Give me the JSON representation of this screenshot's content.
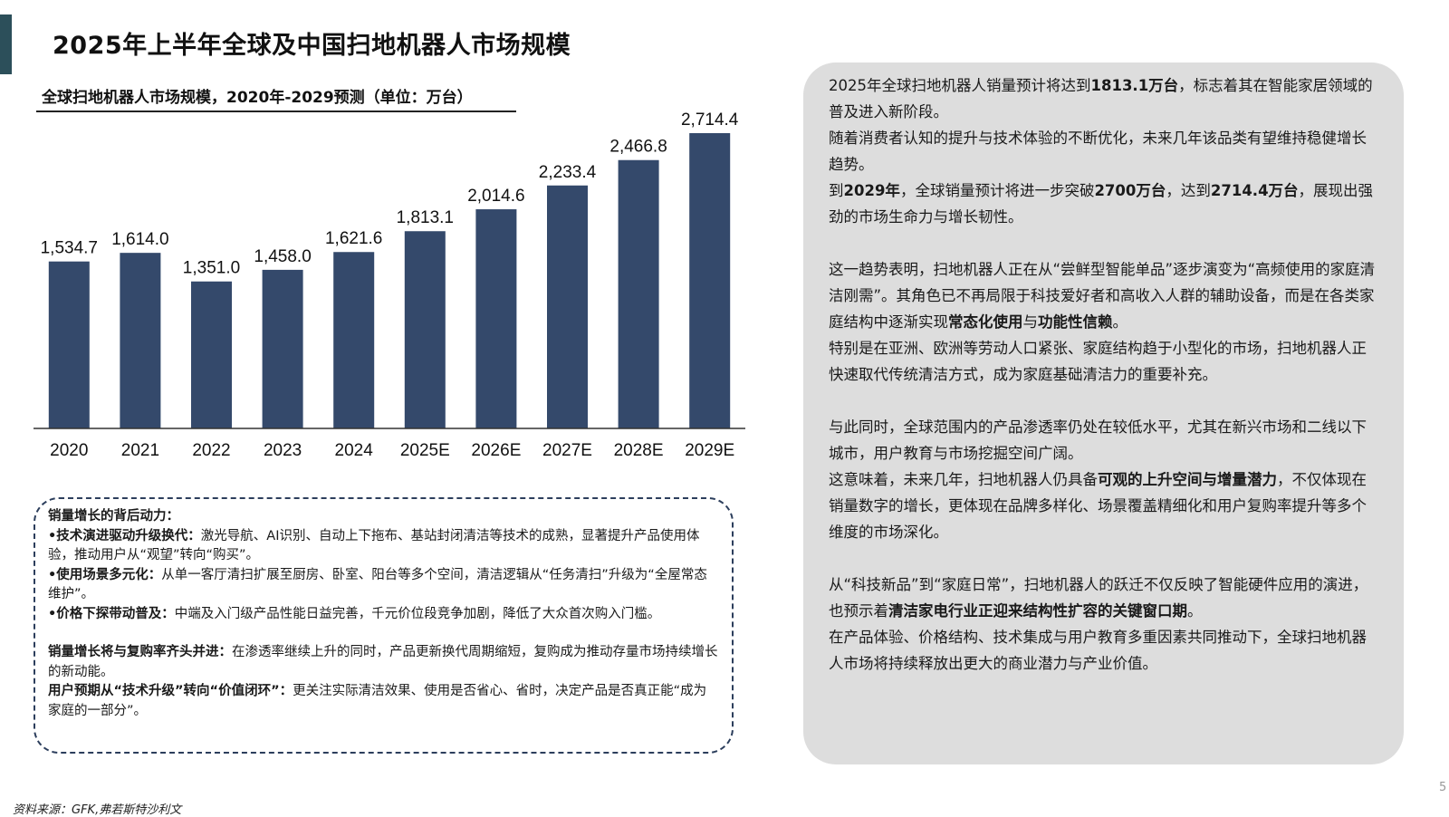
{
  "page": {
    "title": "2025年上半年全球及中国扫地机器人市场规模",
    "source": "资料来源：GFK,弗若斯特沙利文",
    "page_number": "5"
  },
  "colors": {
    "bar": "#34496b",
    "accent": "#2c4f5a",
    "panel_bg": "#dddddd",
    "box_border": "#2c3e5c"
  },
  "chart_data": {
    "type": "bar",
    "title": "全球扫地机器人市场规模，2020年-2029预测（单位：万台）",
    "categories": [
      "2020",
      "2021",
      "2022",
      "2023",
      "2024",
      "2025E",
      "2026E",
      "2027E",
      "2028E",
      "2029E"
    ],
    "values": [
      1534.7,
      1614.0,
      1351.0,
      1458.0,
      1621.6,
      1813.1,
      2014.6,
      2233.4,
      2466.8,
      2714.4
    ],
    "value_labels": [
      "1,534.7",
      "1,614.0",
      "1,351.0",
      "1,458.0",
      "1,621.6",
      "1,813.1",
      "2,014.6",
      "2,233.4",
      "2,466.8",
      "2,714.4"
    ],
    "ylim": [
      0,
      2714.4
    ],
    "grid": false,
    "legend": false
  },
  "drivers": {
    "heading": "销量增长的背后动力：",
    "item1_label": "•技术演进驱动升级换代：",
    "item1_text": "激光导航、AI识别、自动上下拖布、基站封闭清洁等技术的成熟，显著提升产品使用体验，推动用户从“观望”转向“购买”。",
    "item2_label": "•使用场景多元化：",
    "item2_text": "从单一客厅清扫扩展至厨房、卧室、阳台等多个空间，清洁逻辑从“任务清扫”升级为“全屋常态维护”。",
    "item3_label": "•价格下探带动普及：",
    "item3_text": "中端及入门级产品性能日益完善，千元价位段竞争加剧，降低了大众首次购入门槛。",
    "item4_label": "销量增长将与复购率齐头并进：",
    "item4_text": "在渗透率继续上升的同时，产品更新换代周期缩短，复购成为推动存量市场持续增长的新动能。",
    "item5_label": "用户预期从“技术升级”转向“价值闭环”：",
    "item5_text": "更关注实际清洁效果、使用是否省心、省时，决定产品是否真正能“成为家庭的一部分”。"
  },
  "panel": {
    "p1_a": "2025年全球扫地机器人销量预计将达到",
    "p1_b": "1813.1万台",
    "p1_c": "，标志着其在智能家居领域的普及进入新阶段。",
    "p2": "随着消费者认知的提升与技术体验的不断优化，未来几年该品类有望维持稳健增长趋势。",
    "p3_a": "到",
    "p3_b": "2029年",
    "p3_c": "，全球销量预计将进一步突破",
    "p3_d": "2700万台",
    "p3_e": "，达到",
    "p3_f": "2714.4万台",
    "p3_g": "，展现出强劲的市场生命力与增长韧性。",
    "p4_a": "这一趋势表明，扫地机器人正在从“尝鲜型智能单品”逐步演变为“高频使用的家庭清洁刚需”。其角色已不再局限于科技爱好者和高收入人群的辅助设备，而是在各类家庭结构中逐渐实现",
    "p4_b": "常态化使用",
    "p4_c": "与",
    "p4_d": "功能性信赖",
    "p4_e": "。",
    "p5": "特别是在亚洲、欧洲等劳动人口紧张、家庭结构趋于小型化的市场，扫地机器人正快速取代传统清洁方式，成为家庭基础清洁力的重要补充。",
    "p6": "与此同时，全球范围内的产品渗透率仍处在较低水平，尤其在新兴市场和二线以下城市，用户教育与市场挖掘空间广阔。",
    "p7_a": "这意味着，未来几年，扫地机器人仍具备",
    "p7_b": "可观的上升空间与增量潜力",
    "p7_c": "，不仅体现在销量数字的增长，更体现在品牌多样化、场景覆盖精细化和用户复购率提升等多个维度的市场深化。",
    "p8_a": "从“科技新品”到“家庭日常”，扫地机器人的跃迁不仅反映了智能硬件应用的演进，也预示着",
    "p8_b": "清洁家电行业正迎来结构性扩容的关键窗口期",
    "p8_c": "。",
    "p9": "在产品体验、价格结构、技术集成与用户教育多重因素共同推动下，全球扫地机器人市场将持续释放出更大的商业潜力与产业价值。"
  }
}
